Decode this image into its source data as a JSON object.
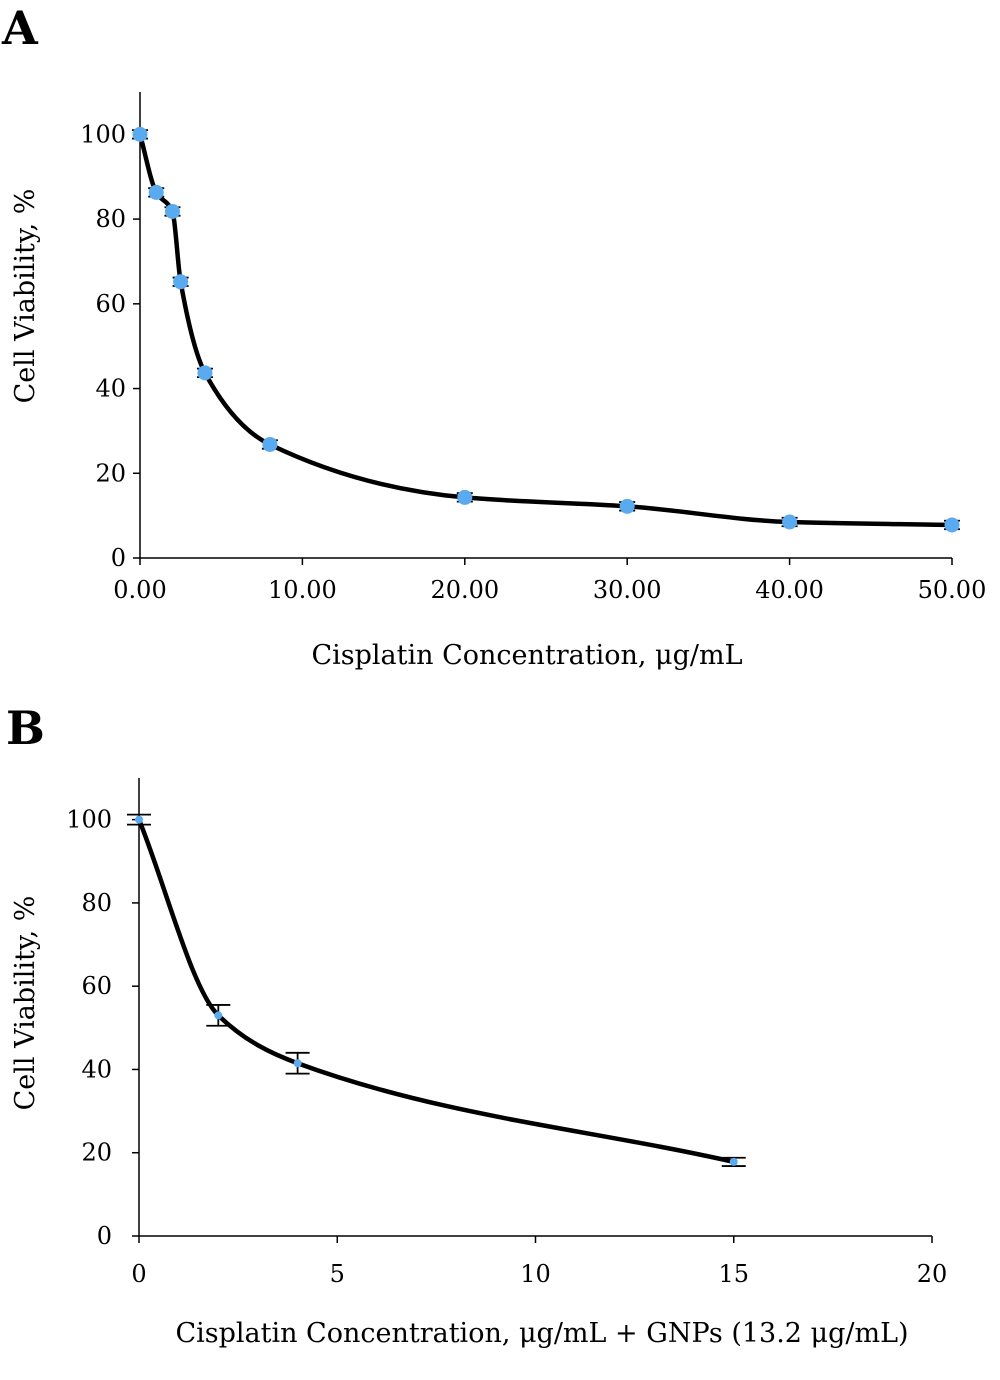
{
  "chart_data": [
    {
      "panel": "A",
      "type": "line",
      "xlabel": "Cisplatin Concentration, μg/mL",
      "ylabel": "Cell Viability, %",
      "xlim": [
        0,
        50
      ],
      "ylim": [
        0,
        110
      ],
      "x_ticks": [
        0,
        10,
        20,
        30,
        40,
        50
      ],
      "x_tick_labels": [
        "0.00",
        "10.00",
        "20.00",
        "30.00",
        "40.00",
        "50.00"
      ],
      "y_ticks": [
        0,
        20,
        40,
        60,
        80,
        100
      ],
      "y_tick_labels": [
        "0",
        "20",
        "40",
        "60",
        "80",
        "100"
      ],
      "grid": false,
      "marker_color": "#5aaaf0",
      "series": [
        {
          "x": [
            0,
            1,
            2,
            2.5,
            4,
            8,
            20,
            30,
            40,
            50
          ],
          "y": [
            100,
            86.3,
            81.8,
            65.2,
            43.7,
            26.8,
            14.3,
            12.2,
            8.5,
            7.8
          ],
          "error": [
            1.0,
            1.0,
            1.0,
            1.0,
            1.0,
            1.0,
            1.0,
            1.0,
            1.0,
            1.0
          ]
        }
      ]
    },
    {
      "panel": "B",
      "type": "line",
      "xlabel": "Cisplatin Concentration,  μg/mL + GNPs (13.2 μg/mL)",
      "ylabel": "Cell Viability, %",
      "xlim": [
        0,
        20
      ],
      "ylim": [
        0,
        110
      ],
      "x_ticks": [
        0,
        5,
        10,
        15,
        20
      ],
      "x_tick_labels": [
        "0",
        "5",
        "10",
        "15",
        "20"
      ],
      "y_ticks": [
        0,
        20,
        40,
        60,
        80,
        100
      ],
      "y_tick_labels": [
        "0",
        "20",
        "40",
        "60",
        "80",
        "100"
      ],
      "grid": false,
      "marker_color": "#5aaaf0",
      "series": [
        {
          "x": [
            0,
            2,
            4,
            15
          ],
          "y": [
            100,
            53,
            41.5,
            17.8
          ],
          "error": [
            1.2,
            2.5,
            2.5,
            1.0
          ]
        }
      ]
    }
  ]
}
